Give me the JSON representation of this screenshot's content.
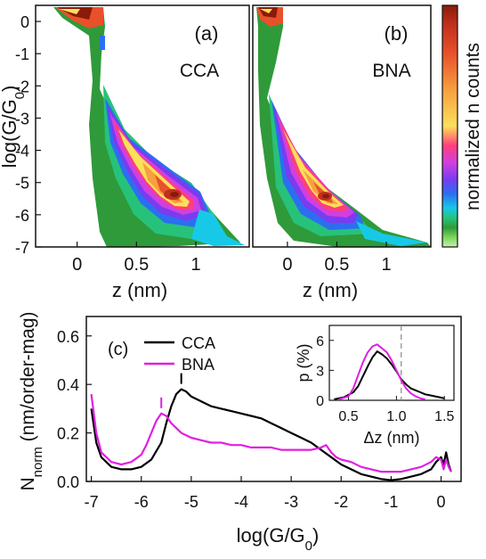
{
  "colorbar": {
    "label": "normalized n counts",
    "colors": [
      "#8a1a0a",
      "#c0301b",
      "#e8512a",
      "#f6a040",
      "#fbe05a",
      "#ff3f7a",
      "#d13fe0",
      "#7a3cf0",
      "#2c6ef0",
      "#17c9e6",
      "#27c27a",
      "#2f9a3a",
      "#7bd65a",
      "#c9eeb0"
    ]
  },
  "chart_data": [
    {
      "type": "heatmap",
      "panel_label": "(a)",
      "tag": "CCA",
      "xlabel": "z (nm)",
      "ylabel": "log(G/G₀)",
      "xlim": [
        -0.35,
        1.45
      ],
      "ylim": [
        -7,
        0.5
      ],
      "xticks": [
        0,
        0.5,
        1
      ],
      "xtick_labels": [
        "0",
        "0.5",
        "1"
      ],
      "yticks": [
        0,
        -1,
        -2,
        -3,
        -4,
        -5,
        -6,
        -7
      ],
      "ytick_labels": [
        "0",
        "-1",
        "-2",
        "-3",
        "-4",
        "-5",
        "-6",
        "-7"
      ],
      "ridge": [
        {
          "z": 0.0,
          "log_g": -1.8
        },
        {
          "z": 0.1,
          "log_g": -2.5
        },
        {
          "z": 0.2,
          "log_g": -3.1
        },
        {
          "z": 0.3,
          "log_g": -3.6
        },
        {
          "z": 0.4,
          "log_g": -4.1
        },
        {
          "z": 0.5,
          "log_g": -4.6
        },
        {
          "z": 0.6,
          "log_g": -5.0
        },
        {
          "z": 0.7,
          "log_g": -5.3
        },
        {
          "z": 0.8,
          "log_g": -5.6
        }
      ]
    },
    {
      "type": "heatmap",
      "panel_label": "(b)",
      "tag": "BNA",
      "xlabel": "z (nm)",
      "ylabel": "",
      "xlim": [
        -0.35,
        1.45
      ],
      "ylim": [
        -7,
        0.5
      ],
      "xticks": [
        0,
        0.5,
        1
      ],
      "xtick_labels": [
        "0",
        "0.5",
        "1"
      ],
      "ridge": [
        {
          "z": 0.0,
          "log_g": -2.0
        },
        {
          "z": 0.1,
          "log_g": -2.8
        },
        {
          "z": 0.2,
          "log_g": -3.3
        },
        {
          "z": 0.3,
          "log_g": -3.8
        },
        {
          "z": 0.4,
          "log_g": -4.3
        },
        {
          "z": 0.5,
          "log_g": -4.8
        },
        {
          "z": 0.6,
          "log_g": -5.3
        },
        {
          "z": 0.7,
          "log_g": -5.6
        },
        {
          "z": 0.8,
          "log_g": -5.9
        }
      ]
    },
    {
      "type": "line",
      "panel_label": "(c)",
      "xlabel": "log(G/G₀)",
      "ylabel": "N_norm (nm/order-mag)",
      "ylabel_main": "N",
      "ylabel_sub": "norm",
      "ylabel_rest": " (nm/order-mag)",
      "xlim": [
        -7.1,
        0.4
      ],
      "ylim": [
        0,
        0.68
      ],
      "xticks": [
        -7,
        -6,
        -5,
        -4,
        -3,
        -2,
        -1,
        0
      ],
      "xtick_labels": [
        "-7",
        "-6",
        "-5",
        "-4",
        "-3",
        "-2",
        "-1",
        "0"
      ],
      "yticks": [
        0,
        0.2,
        0.4,
        0.6
      ],
      "ytick_labels": [
        "0.0",
        "0.2",
        "0.4",
        "0.6"
      ],
      "legend_position": "top-left",
      "series": [
        {
          "name": "CCA",
          "color": "#000000",
          "x": [
            -7.0,
            -6.9,
            -6.8,
            -6.6,
            -6.4,
            -6.2,
            -6.0,
            -5.8,
            -5.6,
            -5.5,
            -5.4,
            -5.3,
            -5.2,
            -5.1,
            -5.0,
            -4.8,
            -4.6,
            -4.4,
            -4.2,
            -4.0,
            -3.8,
            -3.6,
            -3.4,
            -3.2,
            -3.0,
            -2.8,
            -2.6,
            -2.4,
            -2.2,
            -2.0,
            -1.8,
            -1.6,
            -1.4,
            -1.2,
            -1.0,
            -0.8,
            -0.6,
            -0.4,
            -0.2,
            -0.1,
            0.0,
            0.05,
            0.1,
            0.15,
            0.2
          ],
          "y": [
            0.3,
            0.16,
            0.1,
            0.06,
            0.05,
            0.05,
            0.06,
            0.09,
            0.16,
            0.24,
            0.31,
            0.36,
            0.38,
            0.37,
            0.35,
            0.33,
            0.31,
            0.3,
            0.29,
            0.28,
            0.27,
            0.26,
            0.24,
            0.22,
            0.2,
            0.18,
            0.16,
            0.13,
            0.1,
            0.07,
            0.05,
            0.03,
            0.02,
            0.01,
            0.005,
            0.01,
            0.02,
            0.03,
            0.05,
            0.08,
            0.1,
            0.07,
            0.12,
            0.07,
            0.04
          ]
        },
        {
          "name": "BNA",
          "color": "#e020e0",
          "x": [
            -7.0,
            -6.9,
            -6.8,
            -6.6,
            -6.4,
            -6.2,
            -6.0,
            -5.9,
            -5.8,
            -5.7,
            -5.6,
            -5.5,
            -5.4,
            -5.2,
            -5.0,
            -4.8,
            -4.6,
            -4.4,
            -4.2,
            -4.0,
            -3.8,
            -3.6,
            -3.4,
            -3.2,
            -3.0,
            -2.8,
            -2.6,
            -2.4,
            -2.3,
            -2.2,
            -2.1,
            -2.0,
            -1.8,
            -1.6,
            -1.4,
            -1.2,
            -1.0,
            -0.8,
            -0.6,
            -0.4,
            -0.2,
            -0.1,
            0.0,
            0.05,
            0.1,
            0.15,
            0.2
          ],
          "y": [
            0.36,
            0.2,
            0.12,
            0.08,
            0.07,
            0.08,
            0.11,
            0.15,
            0.2,
            0.25,
            0.28,
            0.27,
            0.24,
            0.2,
            0.18,
            0.17,
            0.16,
            0.16,
            0.15,
            0.15,
            0.14,
            0.14,
            0.14,
            0.13,
            0.13,
            0.13,
            0.13,
            0.14,
            0.15,
            0.12,
            0.1,
            0.09,
            0.08,
            0.06,
            0.05,
            0.04,
            0.04,
            0.04,
            0.05,
            0.06,
            0.08,
            0.1,
            0.09,
            0.05,
            0.09,
            0.06,
            0.04
          ]
        }
      ],
      "markers": [
        {
          "series": "CCA",
          "x": -5.2,
          "y": 0.38
        },
        {
          "series": "BNA",
          "x": -5.6,
          "y": 0.28
        }
      ]
    },
    {
      "type": "line",
      "role": "inset",
      "xlabel": "Δz (nm)",
      "ylabel": "p (%)",
      "xlim": [
        0.3,
        1.6
      ],
      "ylim": [
        0,
        7.5
      ],
      "xticks": [
        0.5,
        1.0,
        1.5
      ],
      "xtick_labels": [
        "0.5",
        "1.0",
        "1.5"
      ],
      "yticks": [
        0,
        3,
        6
      ],
      "ytick_labels": [
        "0",
        "3",
        "6"
      ],
      "reference_line_x": 1.05,
      "series": [
        {
          "name": "CCA",
          "color": "#000000",
          "x": [
            0.35,
            0.45,
            0.55,
            0.6,
            0.65,
            0.7,
            0.75,
            0.8,
            0.85,
            0.9,
            0.95,
            1.0,
            1.05,
            1.1,
            1.15,
            1.2,
            1.25,
            1.3,
            1.35,
            1.4,
            1.45,
            1.5
          ],
          "y": [
            0.1,
            0.3,
            0.8,
            1.4,
            2.4,
            3.4,
            4.3,
            4.9,
            4.6,
            4.2,
            3.6,
            2.9,
            2.1,
            1.6,
            1.2,
            1.0,
            0.8,
            0.6,
            0.5,
            0.4,
            0.3,
            0.2
          ]
        },
        {
          "name": "BNA",
          "color": "#e020e0",
          "x": [
            0.4,
            0.5,
            0.55,
            0.6,
            0.65,
            0.7,
            0.75,
            0.8,
            0.85,
            0.9,
            0.95,
            1.0,
            1.05,
            1.1,
            1.15,
            1.2,
            1.25,
            1.3
          ],
          "y": [
            0.1,
            0.4,
            1.2,
            2.5,
            3.8,
            4.8,
            5.4,
            5.6,
            5.2,
            4.8,
            4.0,
            3.0,
            2.0,
            1.2,
            0.7,
            0.4,
            0.2,
            0.1
          ]
        }
      ]
    }
  ]
}
